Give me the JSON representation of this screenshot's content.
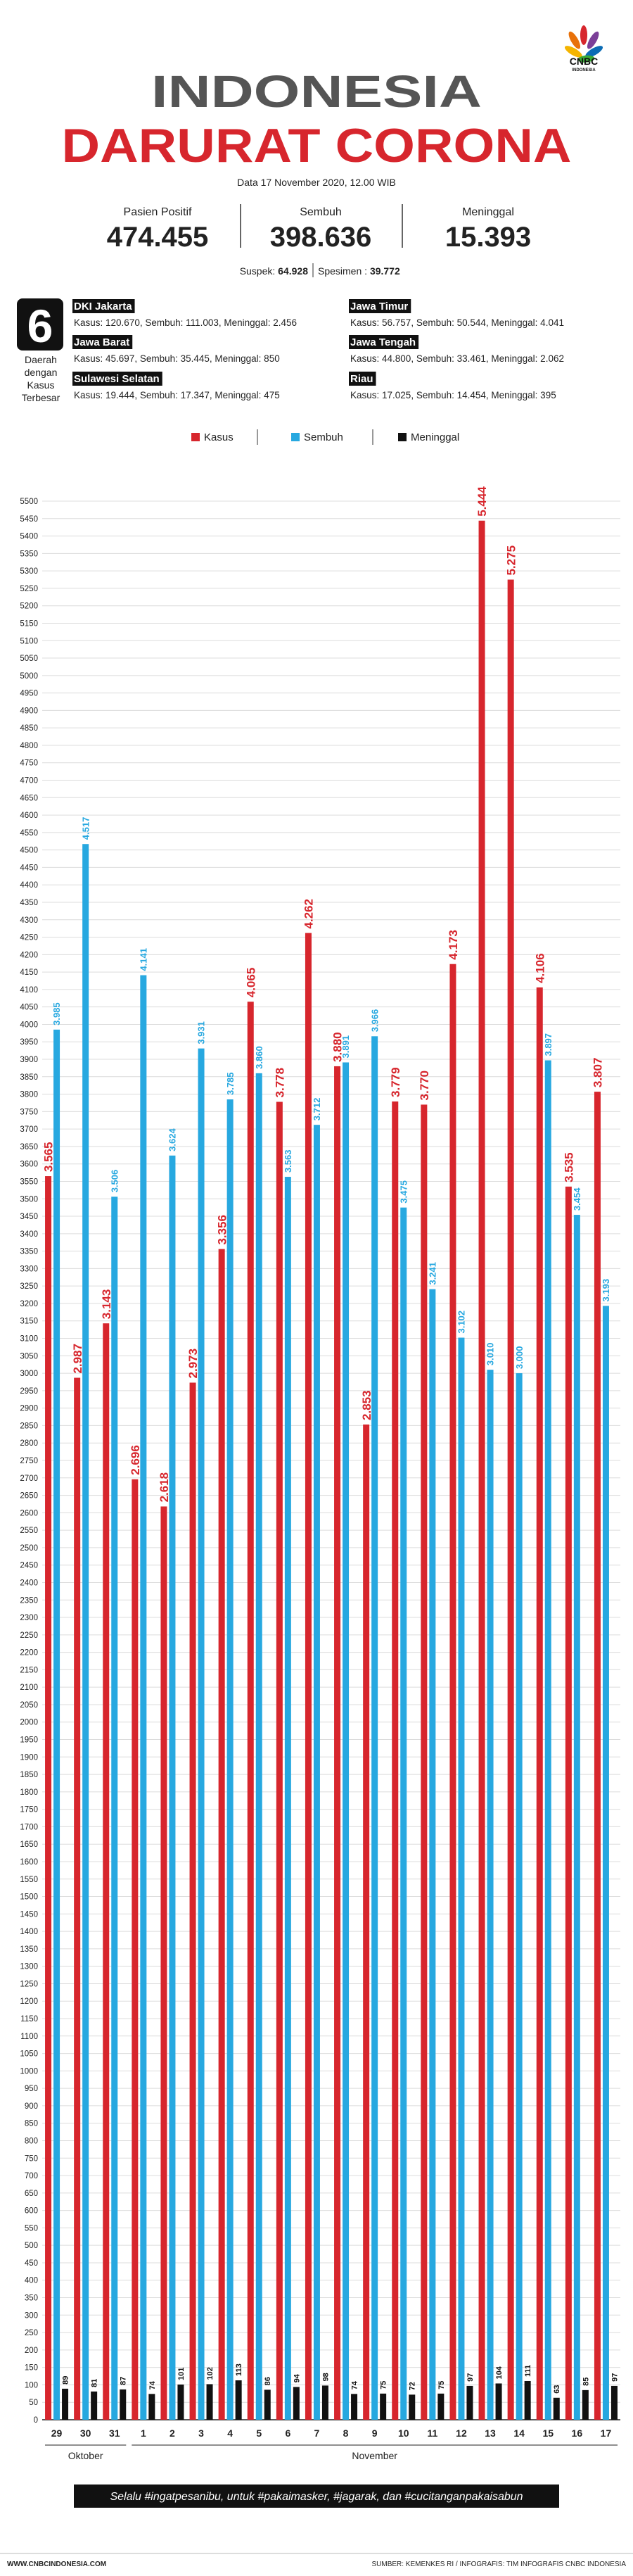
{
  "header": {
    "logo": "CNBC",
    "logo_sub": "INDONESIA",
    "title_1": "INDONESIA",
    "title_2": "DARURAT CORONA",
    "date": "Data 17 November 2020, 12.00 WIB",
    "stats": [
      {
        "label": "Pasien Positif",
        "value": "474.455"
      },
      {
        "label": "Sembuh",
        "value": "398.636"
      },
      {
        "label": "Meninggal",
        "value": "15.393"
      }
    ],
    "suspek_label": "Suspek:",
    "suspek": "64.928",
    "spesimen_label": "Spesimen :",
    "spesimen": "39.772"
  },
  "regions": {
    "count": "6",
    "caption": [
      "Daerah",
      "dengan",
      "Kasus",
      "Terbesar"
    ],
    "items": [
      {
        "name": "DKI Jakarta",
        "stats": "Kasus: 120.670, Sembuh: 111.003, Meninggal: 2.456"
      },
      {
        "name": "Jawa Barat",
        "stats": "Kasus: 45.697, Sembuh: 35.445, Meninggal: 850"
      },
      {
        "name": "Sulawesi Selatan",
        "stats": "Kasus: 19.444, Sembuh: 17.347, Meninggal: 475"
      },
      {
        "name": "Jawa Timur",
        "stats": "Kasus: 56.757, Sembuh: 50.544, Meninggal: 4.041"
      },
      {
        "name": "Jawa Tengah",
        "stats": "Kasus: 44.800, Sembuh: 33.461, Meninggal: 2.062"
      },
      {
        "name": "Riau",
        "stats": "Kasus: 17.025, Sembuh: 14.454, Meninggal: 395"
      }
    ]
  },
  "chart_data": {
    "type": "bar",
    "categories": [
      "29",
      "30",
      "31",
      "1",
      "2",
      "3",
      "4",
      "5",
      "6",
      "7",
      "8",
      "9",
      "10",
      "11",
      "12",
      "13",
      "14",
      "15",
      "16",
      "17"
    ],
    "x_groups": [
      {
        "label": "Oktober",
        "count": 3
      },
      {
        "label": "November",
        "count": 17
      }
    ],
    "series": [
      {
        "name": "Kasus",
        "color": "#d7262d",
        "values": [
          3565,
          2987,
          3143,
          2696,
          2618,
          2973,
          3356,
          4065,
          3778,
          4262,
          3880,
          2853,
          3779,
          3770,
          4173,
          5444,
          5275,
          4106,
          3535,
          3807
        ],
        "value_labels": [
          "3.565",
          "2.987",
          "3.143",
          "2.696",
          "2.618",
          "2.973",
          "3.356",
          "4.065",
          "3.778",
          "4.262",
          "3.880",
          "2.853",
          "3.779",
          "3.770",
          "4.173",
          "5.444",
          "5.275",
          "4.106",
          "3.535",
          "3.807"
        ]
      },
      {
        "name": "Sembuh",
        "color": "#27a8e0",
        "values": [
          3985,
          4517,
          3506,
          4141,
          3624,
          3931,
          3785,
          3860,
          3563,
          3712,
          3891,
          3966,
          3475,
          3241,
          3102,
          3010,
          3000,
          3897,
          3454,
          3193
        ],
        "value_labels": [
          "3.985",
          "4.517",
          "3.506",
          "4.141",
          "3.624",
          "3.931",
          "3.785",
          "3.860",
          "3.563",
          "3.712",
          "3.891",
          "3.966",
          "3.475",
          "3.241",
          "3.102",
          "3.010",
          "3.000",
          "3.897",
          "3.454",
          "3.193"
        ]
      },
      {
        "name": "Meninggal",
        "color": "#111111",
        "values": [
          89,
          81,
          87,
          74,
          101,
          102,
          113,
          86,
          94,
          98,
          74,
          75,
          72,
          75,
          97,
          104,
          111,
          63,
          85,
          97
        ]
      }
    ],
    "ylim": [
      0,
      5500
    ],
    "yticks": [
      0,
      50,
      100,
      150,
      200,
      250,
      300,
      350,
      400,
      450,
      500,
      550,
      600,
      650,
      700,
      750,
      800,
      850,
      900,
      950,
      1000,
      1050,
      1100,
      1150,
      1200,
      1250,
      1300,
      1350,
      1400,
      1450,
      1500,
      1550,
      1600,
      1650,
      1700,
      1750,
      1800,
      1850,
      1900,
      1950,
      2000,
      2050,
      2100,
      2150,
      2200,
      2250,
      2300,
      2350,
      2400,
      2450,
      2500,
      2550,
      2600,
      2650,
      2700,
      2750,
      2800,
      2850,
      2900,
      2950,
      3000,
      3050,
      3100,
      3150,
      3200,
      3250,
      3300,
      3350,
      3400,
      3450,
      3500,
      3550,
      3600,
      3650,
      3700,
      3750,
      3800,
      3850,
      3900,
      3950,
      4000,
      4050,
      4100,
      4150,
      4200,
      4250,
      4300,
      4350,
      4400,
      4450,
      4500,
      4550,
      4600,
      4650,
      4700,
      4750,
      4800,
      4850,
      4900,
      4950,
      5000,
      5050,
      5100,
      5150,
      5200,
      5250,
      5300,
      5350,
      5400,
      5450,
      5500
    ],
    "grid": true,
    "legend": "top"
  },
  "footer": {
    "slogan": "Selalu #ingatpesanibu, untuk #pakaimasker, #jagarak, dan #cucitanganpakaisabun",
    "site": "WWW.CNBCINDONESIA.COM",
    "source": "SUMBER: KEMENKES RI / INFOGRAFIS: TIM INFOGRAFIS CNBC INDONESIA"
  }
}
